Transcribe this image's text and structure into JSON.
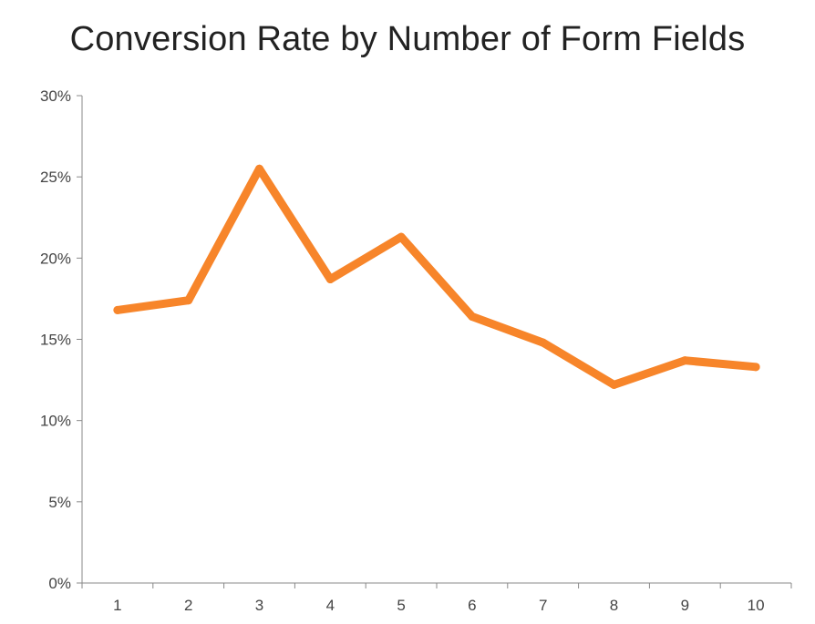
{
  "colors": {
    "line": "#F7852A",
    "axis": "#888888",
    "text": "#444444",
    "title": "#222222"
  },
  "chart_data": {
    "type": "line",
    "title": "Conversion Rate by Number of Form Fields",
    "xlabel": "",
    "ylabel": "",
    "categories": [
      "1",
      "2",
      "3",
      "4",
      "5",
      "6",
      "7",
      "8",
      "9",
      "10"
    ],
    "series": [
      {
        "values": [
          16.8,
          17.4,
          25.5,
          18.7,
          21.3,
          16.4,
          14.8,
          12.2,
          13.7,
          13.3
        ]
      }
    ],
    "ylim": [
      0,
      30
    ],
    "y_ticks": [
      0,
      5,
      10,
      15,
      20,
      25,
      30
    ],
    "y_tick_labels": [
      "0%",
      "5%",
      "10%",
      "15%",
      "20%",
      "25%",
      "30%"
    ],
    "grid": false,
    "legend": "none"
  }
}
